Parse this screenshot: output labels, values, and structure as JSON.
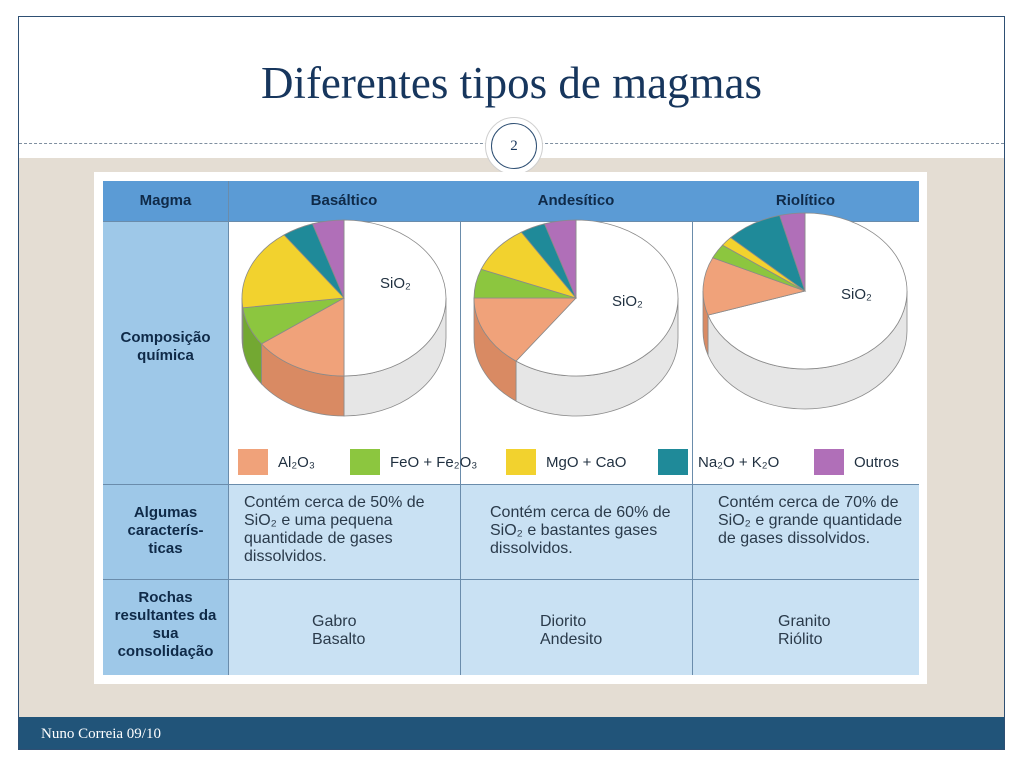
{
  "slide": {
    "title": "Diferentes tipos de magmas",
    "page_number": "2",
    "footer": "Nuno Correia 09/10"
  },
  "table": {
    "header": {
      "magma": "Magma",
      "basaltico": "Basáltico",
      "andesitico": "Andesítico",
      "riolitico": "Riolítico"
    },
    "rows": {
      "composicao": "Composição química",
      "caracteristicas": "Algumas caracterís- ticas",
      "rochas": "Rochas resultantes da sua consolidação"
    },
    "pie_label": "SiO₂",
    "legend": [
      {
        "label": "Al₂O₃",
        "color": "#f0a27a"
      },
      {
        "label": "FeO + Fe₂O₃",
        "color": "#8cc63f"
      },
      {
        "label": "MgO + CaO",
        "color": "#f2d22e"
      },
      {
        "label": "Na₂O + K₂O",
        "color": "#1f8a99"
      },
      {
        "label": "Outros",
        "color": "#b06fb8"
      }
    ],
    "caracteristicas": {
      "basaltico": "Contém cerca de 50% de SiO₂ e uma pequena quantidade de gases dissolvidos.",
      "andesitico": "Contém cerca de 60% de SiO₂ e bastantes gases dissolvidos.",
      "riolitico": "Contém cerca de 70% de SiO₂ e grande quantidade de gases dissolvidos."
    },
    "rochas": {
      "basaltico": "Gabro Basalto",
      "andesitico": "Diorito Andesito",
      "riolitico": "Granito Riólito"
    }
  },
  "chart_data": [
    {
      "type": "pie",
      "title": "Basáltico",
      "categories": [
        "SiO₂",
        "Al₂O₃",
        "FeO + Fe₂O₃",
        "MgO + CaO",
        "Na₂O + K₂O",
        "Outros"
      ],
      "values": [
        50,
        15,
        8,
        17,
        5,
        5
      ]
    },
    {
      "type": "pie",
      "title": "Andesítico",
      "categories": [
        "SiO₂",
        "Al₂O₃",
        "FeO + Fe₂O₃",
        "MgO + CaO",
        "Na₂O + K₂O",
        "Outros"
      ],
      "values": [
        60,
        15,
        6,
        10,
        4,
        5
      ]
    },
    {
      "type": "pie",
      "title": "Riolítico",
      "categories": [
        "SiO₂",
        "Al₂O₃",
        "FeO + Fe₂O₃",
        "MgO + CaO",
        "Na₂O + K₂O",
        "Outros"
      ],
      "values": [
        70,
        12,
        3,
        2,
        9,
        4
      ]
    }
  ]
}
